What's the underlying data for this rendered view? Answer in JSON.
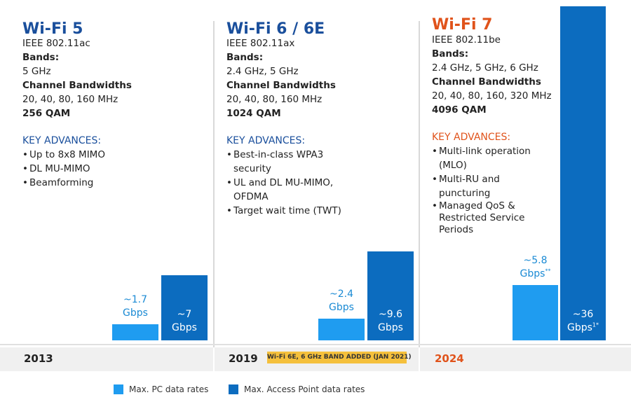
{
  "colors": {
    "blue_dark": "#0c6cbf",
    "blue_light": "#1f9cf0",
    "title_blue": "#1a4f9c",
    "title_orange": "#e0531b",
    "label_blue": "#1a8ad4",
    "badge_yellow": "#f5c03c"
  },
  "columns": [
    {
      "title": "Wi-Fi 5",
      "standard": "IEEE 802.11ac",
      "bands_label": "Bands:",
      "bands": "5 GHz",
      "bandwidth_label": "Channel Bandwidths",
      "bandwidths": "20, 40, 80, 160 MHz",
      "qam": "256 QAM",
      "key_advances_label": "KEY ADVANCES:",
      "advances": [
        "Up to 8x8 MIMO",
        "DL MU-MIMO",
        "Beamforming"
      ],
      "year": "2013"
    },
    {
      "title": "Wi-Fi 6 / 6E",
      "standard": "IEEE 802.11ax",
      "bands_label": "Bands:",
      "bands": "2.4 GHz, 5 GHz",
      "bandwidth_label": "Channel Bandwidths",
      "bandwidths": "20, 40, 80, 160 MHz",
      "qam": "1024 QAM",
      "key_advances_label": "KEY ADVANCES:",
      "advances": [
        "Best-in-class WPA3 security",
        "UL and DL MU-MIMO, OFDMA",
        "Target wait time (TWT)"
      ],
      "year": "2019",
      "badge": "Wi-Fi 6E, 6 GHz BAND ADDED  (JAN 2021)"
    },
    {
      "title": "Wi-Fi 7",
      "standard": "IEEE 802.11be",
      "bands_label": "Bands:",
      "bands": "2.4 GHz, 5 GHz, 6 GHz",
      "bandwidth_label": "Channel Bandwidths",
      "bandwidths": "20, 40, 80, 160, 320 MHz",
      "qam": "4096 QAM",
      "key_advances_label": "KEY ADVANCES:",
      "advances": [
        "Multi-link operation (MLO)",
        "Multi-RU and puncturing",
        "Managed QoS & Restricted Service Periods"
      ],
      "year": "2024"
    }
  ],
  "chart_data": {
    "type": "bar",
    "categories": [
      "Wi-Fi 5",
      "Wi-Fi 6 / 6E",
      "Wi-Fi 7"
    ],
    "series": [
      {
        "name": "Max. PC data rates",
        "values": [
          1.7,
          2.4,
          5.8
        ],
        "labels": [
          {
            "approx": "~1.7",
            "unit": "Gbps",
            "mark": ""
          },
          {
            "approx": "~2.4",
            "unit": "Gbps",
            "mark": ""
          },
          {
            "approx": "~5.8",
            "unit": "Gbps",
            "mark": "**"
          }
        ]
      },
      {
        "name": "Max. Access Point data rates",
        "values": [
          7,
          9.6,
          36
        ],
        "labels": [
          {
            "approx": "~7",
            "unit": "Gbps",
            "mark": ""
          },
          {
            "approx": "~9.6",
            "unit": "Gbps",
            "mark": ""
          },
          {
            "approx": "~36",
            "unit": "Gbps",
            "mark": "1*"
          }
        ]
      }
    ],
    "unit": "Gbps",
    "legend_position": "bottom"
  }
}
